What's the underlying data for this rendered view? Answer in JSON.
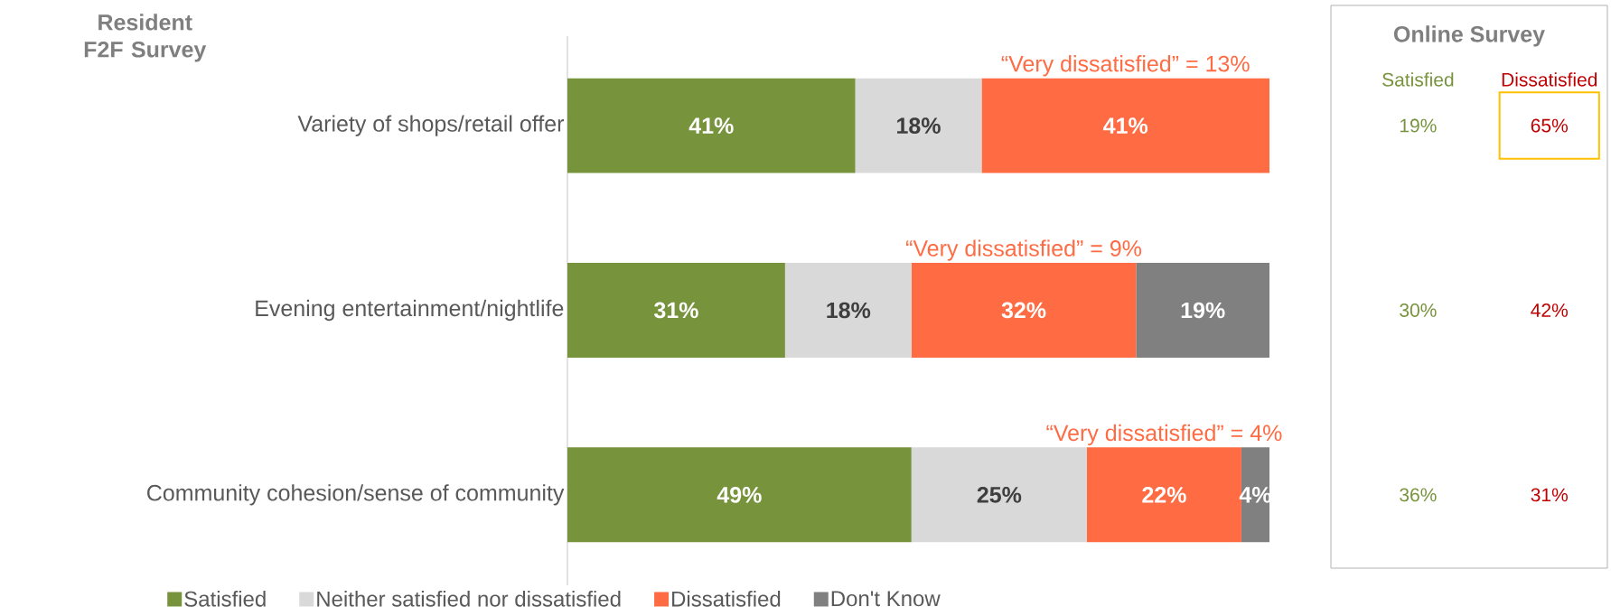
{
  "chart_data": [
    {
      "type": "bar",
      "orientation": "horizontal",
      "stacked": true,
      "title": "Resident F2F Survey",
      "categories": [
        "Variety of shops/retail offer",
        "Evening entertainment/nightlife",
        "Community cohesion/sense of community"
      ],
      "series": [
        {
          "name": "Satisfied",
          "color": "#77933c",
          "values": [
            41,
            31,
            49
          ],
          "value_labels": [
            "41%",
            "31%",
            "49%"
          ]
        },
        {
          "name": "Neither satisfied nor dissatisfied",
          "color": "#d9d9d9",
          "values": [
            18,
            18,
            25
          ],
          "value_labels": [
            "18%",
            "18%",
            "25%"
          ]
        },
        {
          "name": "Dissatisfied",
          "color": "#ff6b43",
          "values": [
            41,
            32,
            22
          ],
          "value_labels": [
            "41%",
            "32%",
            "22%"
          ]
        },
        {
          "name": "Don't Know",
          "color": "#808080",
          "values": [
            null,
            19,
            4
          ],
          "value_labels": [
            null,
            "19%",
            "4%"
          ]
        }
      ],
      "annotations": [
        "“Very dissatisfied” = 13%",
        "“Very dissatisfied” = 9%",
        "“Very dissatisfied” = 4%"
      ],
      "legend": "bottom"
    },
    {
      "type": "other",
      "title": "Online Survey",
      "series": [
        {
          "name": "Satisfied",
          "color": "#77933c"
        },
        {
          "name": "Dissatisfied",
          "color": "#c00000"
        }
      ],
      "annotations": [
        "19%",
        "65%",
        "30%",
        "42%",
        "36%",
        "31%"
      ]
    }
  ]
}
